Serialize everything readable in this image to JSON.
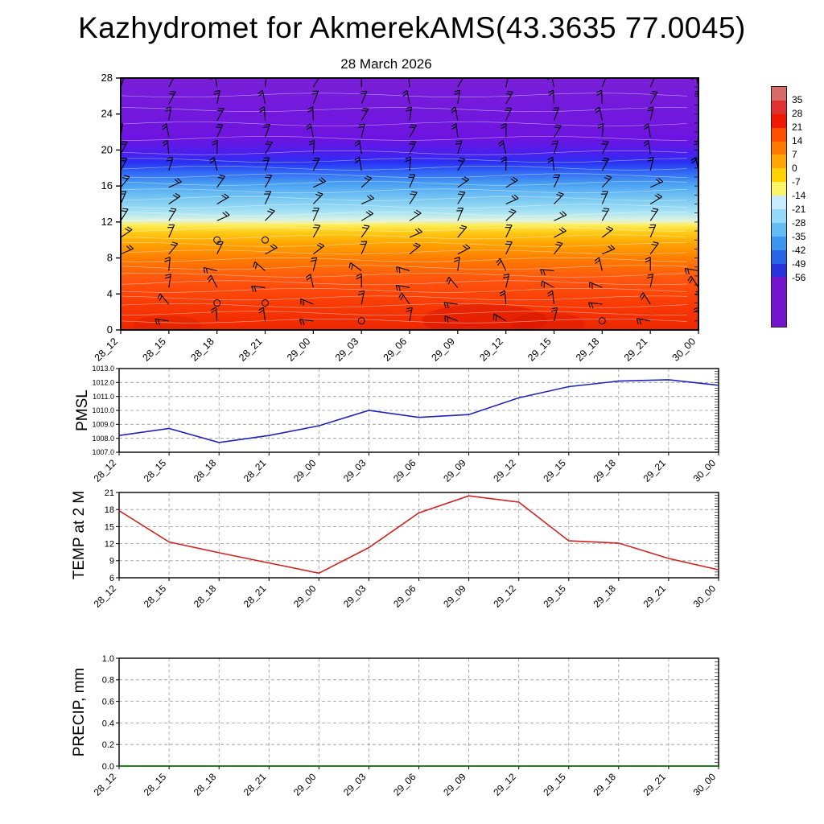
{
  "page": {
    "title": "Kazhydromet for AkmerekAMS(43.3635 77.0045)"
  },
  "time_labels": [
    "28_12",
    "28_15",
    "28_18",
    "28_21",
    "29_00",
    "29_03",
    "29_06",
    "29_09",
    "29_12",
    "29_15",
    "29_18",
    "29_21",
    "30_00"
  ],
  "chart_data": [
    {
      "type": "heatmap",
      "name": "temperature-height-cross-section",
      "title": "28 March 2026",
      "x_categories": [
        "28_12",
        "28_15",
        "28_18",
        "28_21",
        "29_00",
        "29_03",
        "29_06",
        "29_09",
        "29_12",
        "29_15",
        "29_18",
        "29_21",
        "30_00"
      ],
      "y_ticks": [
        0,
        4,
        8,
        12,
        16,
        20,
        24,
        28
      ],
      "ylim": [
        0,
        28
      ],
      "overlay": "wind-barbs",
      "legend_position": "right",
      "fill_gradient_top_to_bottom": [
        {
          "pos": 0.0,
          "color": "#7a1fd8"
        },
        {
          "pos": 0.24,
          "color": "#6e14e0"
        },
        {
          "pos": 0.3,
          "color": "#4a20ee"
        },
        {
          "pos": 0.335,
          "color": "#2930f2"
        },
        {
          "pos": 0.37,
          "color": "#2f62f5"
        },
        {
          "pos": 0.42,
          "color": "#49a0f2"
        },
        {
          "pos": 0.48,
          "color": "#79c8f2"
        },
        {
          "pos": 0.53,
          "color": "#a5e2f5"
        },
        {
          "pos": 0.565,
          "color": "#dff3e0"
        },
        {
          "pos": 0.585,
          "color": "#ffee55"
        },
        {
          "pos": 0.615,
          "color": "#ffc813"
        },
        {
          "pos": 0.66,
          "color": "#ffa200"
        },
        {
          "pos": 0.72,
          "color": "#ff7b00"
        },
        {
          "pos": 0.8,
          "color": "#ff5510"
        },
        {
          "pos": 0.9,
          "color": "#f93a05"
        },
        {
          "pos": 1.0,
          "color": "#ee2600"
        }
      ],
      "colorbar": {
        "tick_labels": [
          "35",
          "28",
          "21",
          "14",
          "7",
          "0",
          "-7",
          "-14",
          "-21",
          "-28",
          "-35",
          "-42",
          "-49",
          "-56"
        ],
        "segment_colors_top_to_bottom": [
          "#d96a6a",
          "#e03030",
          "#f01800",
          "#ff4e00",
          "#ff7a00",
          "#ffa600",
          "#ffd200",
          "#fff566",
          "#c8ecff",
          "#96d8fa",
          "#64bef5",
          "#3c96f0",
          "#2864e6",
          "#2832dc",
          "#7414cc"
        ]
      }
    },
    {
      "type": "line",
      "name": "pmsl",
      "title": "PMSL",
      "color": "#2222bb",
      "grid": true,
      "categories": [
        "28_12",
        "28_15",
        "28_18",
        "28_21",
        "29_00",
        "29_03",
        "29_06",
        "29_09",
        "29_12",
        "29_15",
        "29_18",
        "29_21",
        "30_00"
      ],
      "values": [
        1008.2,
        1008.7,
        1007.7,
        1008.2,
        1008.9,
        1010.0,
        1009.5,
        1009.7,
        1010.9,
        1011.7,
        1012.1,
        1012.2,
        1011.8
      ],
      "ylim": [
        1007,
        1013
      ],
      "yticks": [
        1007,
        1008,
        1009,
        1010,
        1011,
        1012,
        1013
      ],
      "y_decimals": 1
    },
    {
      "type": "line",
      "name": "temp-2m",
      "title": "TEMP at 2 M",
      "color": "#cc2222",
      "grid": true,
      "categories": [
        "28_12",
        "28_15",
        "28_18",
        "28_21",
        "29_00",
        "29_03",
        "29_06",
        "29_09",
        "29_12",
        "29_15",
        "29_18",
        "29_21",
        "30_00"
      ],
      "values": [
        17.8,
        12.3,
        10.4,
        8.6,
        6.8,
        11.3,
        17.4,
        20.4,
        19.3,
        12.5,
        12.1,
        9.4,
        7.4
      ],
      "ylim": [
        6,
        21
      ],
      "yticks": [
        6,
        9,
        12,
        15,
        18,
        21
      ],
      "y_decimals": 0
    },
    {
      "type": "line",
      "name": "precip",
      "title": "PRECIP, mm",
      "color": "#007700",
      "grid": true,
      "categories": [
        "28_12",
        "28_15",
        "28_18",
        "28_21",
        "29_00",
        "29_03",
        "29_06",
        "29_09",
        "29_12",
        "29_15",
        "29_18",
        "29_21",
        "30_00"
      ],
      "values": [
        0,
        0,
        0,
        0,
        0,
        0,
        0,
        0,
        0,
        0,
        0,
        0,
        0
      ],
      "ylim": [
        0,
        1
      ],
      "yticks": [
        0,
        0.2,
        0.4,
        0.6,
        0.8,
        1
      ],
      "y_decimals": 1
    }
  ]
}
